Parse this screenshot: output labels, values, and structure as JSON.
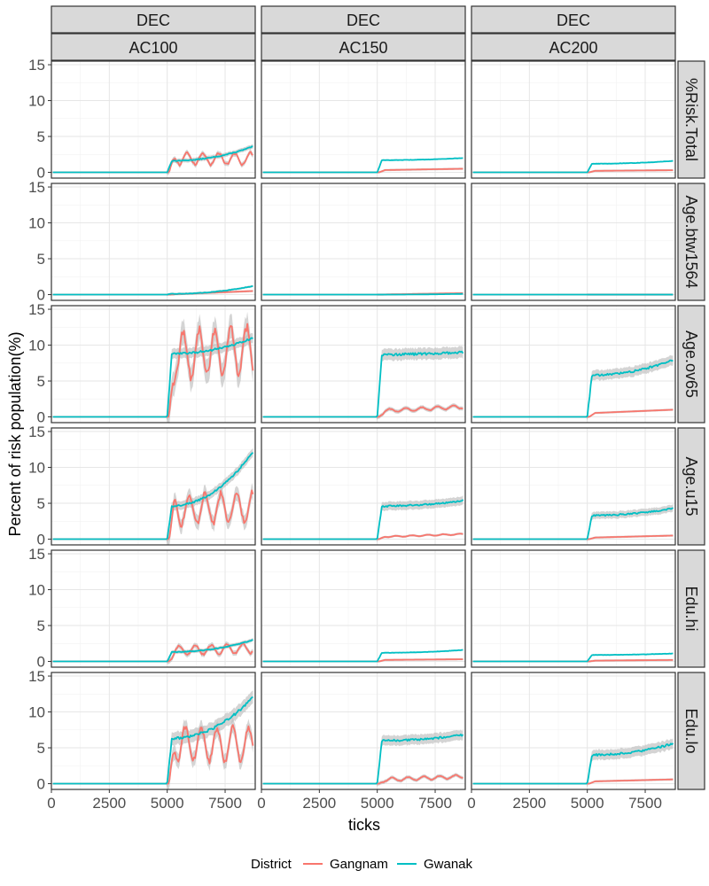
{
  "chart_data": {
    "type": "line",
    "facet_top_outer": "DEC",
    "facet_columns": [
      "AC100",
      "AC150",
      "AC200"
    ],
    "facet_rows": [
      "%Risk.Total",
      "Age.btw1564",
      "Age.ov65",
      "Age.u15",
      "Edu.hi",
      "Edu.lo"
    ],
    "xlabel": "ticks",
    "ylabel": "Percent of risk population(%)",
    "xlim": [
      0,
      8800
    ],
    "ylim": [
      -0.8,
      15.5
    ],
    "x_ticks": [
      0,
      2500,
      5000,
      7500
    ],
    "y_ticks": [
      0,
      5,
      10,
      15
    ],
    "legend": {
      "title": "District",
      "position": "bottom",
      "entries": [
        {
          "name": "Gangnam",
          "color": "#F8766D"
        },
        {
          "name": "Gwanak",
          "color": "#00BFC4"
        }
      ]
    },
    "series_colors": {
      "Gangnam": "#F8766D",
      "Gwanak": "#00BFC4",
      "ribbon": "#bdbdbd"
    },
    "onset_tick": 5000,
    "panels": [
      {
        "row": 0,
        "col": 0,
        "gangnam": {
          "level": 1.9,
          "osc": 1.0,
          "growth": 0.0
        },
        "gwanak": {
          "level": 1.6,
          "end": 3.6,
          "ci": 0.3
        }
      },
      {
        "row": 0,
        "col": 1,
        "gangnam": {
          "level": 0.3,
          "osc": 0.0,
          "growth": 0.2
        },
        "gwanak": {
          "level": 1.7,
          "end": 2.0,
          "ci": 0.1
        }
      },
      {
        "row": 0,
        "col": 2,
        "gangnam": {
          "level": 0.2,
          "osc": 0.0,
          "growth": 0.1
        },
        "gwanak": {
          "level": 1.2,
          "end": 1.6,
          "ci": 0.1
        }
      },
      {
        "row": 1,
        "col": 0,
        "gangnam": {
          "level": 0.0,
          "osc": 0.0,
          "growth": 0.5
        },
        "gwanak": {
          "level": 0.1,
          "end": 1.2,
          "ci": 0.15
        }
      },
      {
        "row": 1,
        "col": 1,
        "gangnam": {
          "level": 0.0,
          "osc": 0.0,
          "growth": 0.2
        },
        "gwanak": {
          "level": 0.0,
          "end": 0.1,
          "ci": 0.0
        }
      },
      {
        "row": 1,
        "col": 2,
        "gangnam": {
          "level": 0.0,
          "osc": 0.0,
          "growth": 0.0
        },
        "gwanak": {
          "level": 0.0,
          "end": 0.0,
          "ci": 0.0
        }
      },
      {
        "row": 2,
        "col": 0,
        "gangnam": {
          "level": 8.5,
          "osc": 4.0,
          "growth": 1.0
        },
        "gwanak": {
          "level": 8.8,
          "end": 11.0,
          "ci": 0.7
        }
      },
      {
        "row": 2,
        "col": 1,
        "gangnam": {
          "level": 0.8,
          "osc": 0.3,
          "growth": 0.6
        },
        "gwanak": {
          "level": 8.7,
          "end": 9.0,
          "ci": 0.8
        }
      },
      {
        "row": 2,
        "col": 2,
        "gangnam": {
          "level": 0.5,
          "osc": 0.0,
          "growth": 0.5
        },
        "gwanak": {
          "level": 5.8,
          "end": 8.0,
          "ci": 0.7
        }
      },
      {
        "row": 3,
        "col": 0,
        "gangnam": {
          "level": 4.0,
          "osc": 2.5,
          "growth": 0.5
        },
        "gwanak": {
          "level": 4.6,
          "end": 12.2,
          "ci": 0.6
        }
      },
      {
        "row": 3,
        "col": 1,
        "gangnam": {
          "level": 0.3,
          "osc": 0.1,
          "growth": 0.4
        },
        "gwanak": {
          "level": 4.6,
          "end": 5.4,
          "ci": 0.6
        }
      },
      {
        "row": 3,
        "col": 2,
        "gangnam": {
          "level": 0.2,
          "osc": 0.0,
          "growth": 0.3
        },
        "gwanak": {
          "level": 3.3,
          "end": 4.3,
          "ci": 0.5
        }
      },
      {
        "row": 4,
        "col": 0,
        "gangnam": {
          "level": 1.5,
          "osc": 0.8,
          "growth": 0.3
        },
        "gwanak": {
          "level": 1.3,
          "end": 3.0,
          "ci": 0.25
        }
      },
      {
        "row": 4,
        "col": 1,
        "gangnam": {
          "level": 0.2,
          "osc": 0.0,
          "growth": 0.1
        },
        "gwanak": {
          "level": 1.2,
          "end": 1.6,
          "ci": 0.1
        }
      },
      {
        "row": 4,
        "col": 2,
        "gangnam": {
          "level": 0.1,
          "osc": 0.0,
          "growth": 0.1
        },
        "gwanak": {
          "level": 0.9,
          "end": 1.1,
          "ci": 0.1
        }
      },
      {
        "row": 5,
        "col": 0,
        "gangnam": {
          "level": 5.5,
          "osc": 3.0,
          "growth": 0.0
        },
        "gwanak": {
          "level": 6.3,
          "end": 12.0,
          "ci": 0.9
        }
      },
      {
        "row": 5,
        "col": 1,
        "gangnam": {
          "level": 0.5,
          "osc": 0.3,
          "growth": 0.5
        },
        "gwanak": {
          "level": 6.0,
          "end": 6.8,
          "ci": 0.7
        }
      },
      {
        "row": 5,
        "col": 2,
        "gangnam": {
          "level": 0.3,
          "osc": 0.0,
          "growth": 0.3
        },
        "gwanak": {
          "level": 4.0,
          "end": 5.6,
          "ci": 0.7
        }
      }
    ]
  }
}
